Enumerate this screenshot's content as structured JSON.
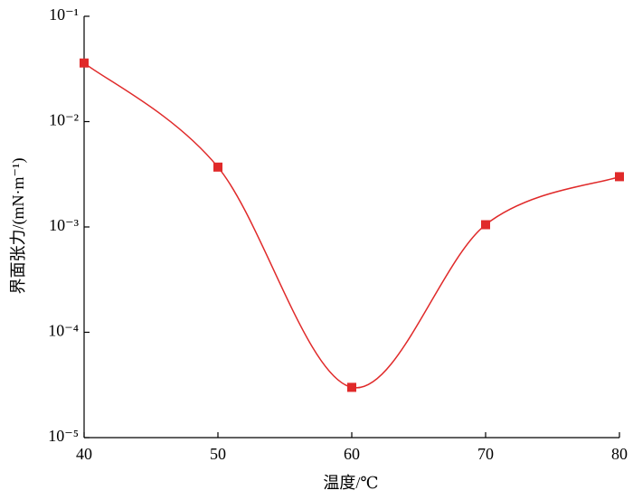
{
  "chart_data": {
    "type": "line",
    "x_label": "温度/℃",
    "y_label": "界面张力/(mN·m⁻¹)",
    "x": [
      40,
      50,
      60,
      70,
      80
    ],
    "series": [
      {
        "color": "#e02a2a",
        "values": [
          0.036,
          0.0037,
          3e-05,
          0.00105,
          0.003
        ]
      }
    ],
    "xlim": [
      40,
      80
    ],
    "xticks": [
      40,
      50,
      60,
      70,
      80
    ],
    "ylim": [
      1e-05,
      0.1
    ],
    "yscale": "log",
    "yticks": [
      {
        "value": 1e-05,
        "label": "10⁻⁵"
      },
      {
        "value": 0.0001,
        "label": "10⁻⁴"
      },
      {
        "value": 0.001,
        "label": "10⁻³"
      },
      {
        "value": 0.01,
        "label": "10⁻²"
      },
      {
        "value": 0.1,
        "label": "10⁻¹"
      }
    ]
  }
}
